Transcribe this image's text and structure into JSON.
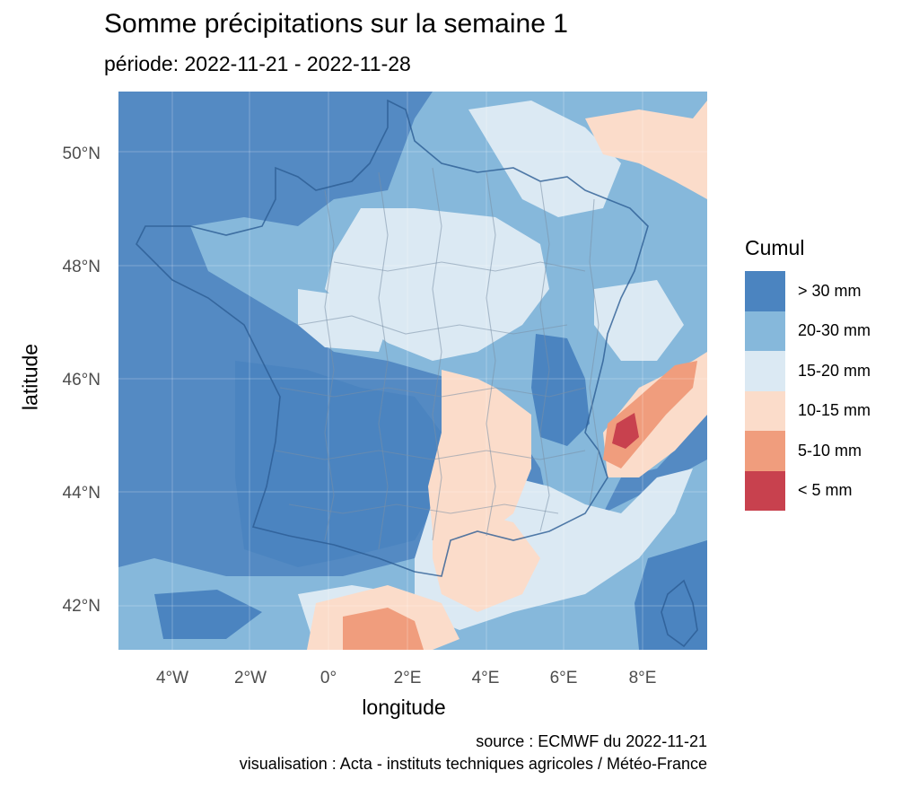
{
  "title": "Somme précipitations sur la semaine 1",
  "subtitle": "période: 2022-11-21 - 2022-11-28",
  "axes": {
    "x_title": "longitude",
    "y_title": "latitude",
    "x_ticks": [
      {
        "value": -4,
        "label": "4°W"
      },
      {
        "value": -2,
        "label": "2°W"
      },
      {
        "value": 0,
        "label": "0°"
      },
      {
        "value": 2,
        "label": "2°E"
      },
      {
        "value": 4,
        "label": "4°E"
      },
      {
        "value": 6,
        "label": "6°E"
      },
      {
        "value": 8,
        "label": "8°E"
      }
    ],
    "y_ticks": [
      {
        "value": 50,
        "label": "50°N"
      },
      {
        "value": 48,
        "label": "48°N"
      },
      {
        "value": 46,
        "label": "46°N"
      },
      {
        "value": 44,
        "label": "44°N"
      },
      {
        "value": 42,
        "label": "42°N"
      }
    ],
    "xlim": [
      -5.4,
      9.6
    ],
    "ylim": [
      41.2,
      51.1
    ]
  },
  "legend": {
    "title": "Cumul",
    "items": [
      {
        "label": "> 30 mm",
        "color": "#4b84c0"
      },
      {
        "label": "20-30 mm",
        "color": "#86b8db"
      },
      {
        "label": "15-20 mm",
        "color": "#dbe9f3"
      },
      {
        "label": "10-15 mm",
        "color": "#fbdcca"
      },
      {
        "label": "5-10 mm",
        "color": "#f09d7d"
      },
      {
        "label": "< 5 mm",
        "color": "#c8414e"
      }
    ]
  },
  "captions": {
    "source": "source : ECMWF du 2022-11-21",
    "visualisation": "visualisation : Acta - instituts techniques agricoles / Météo-France"
  }
}
